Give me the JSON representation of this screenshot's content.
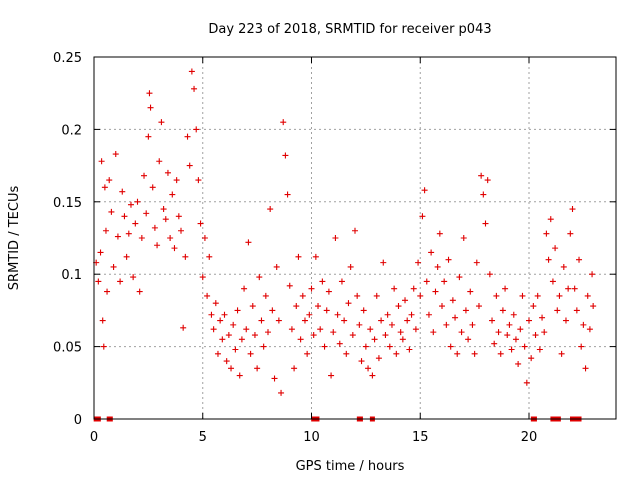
{
  "chart_data": {
    "type": "scatter",
    "title": "Day 223 of 2018, SRMTID for receiver p043",
    "xlabel": "GPS time / hours",
    "ylabel": "SRMTID / TECUs",
    "xlim": [
      0,
      24
    ],
    "ylim": [
      0,
      0.25
    ],
    "xticks": [
      0,
      5,
      10,
      15,
      20
    ],
    "xtick_labels": [
      "0",
      "5",
      "10",
      "15",
      "20"
    ],
    "yticks": [
      0,
      0.05,
      0.1,
      0.15,
      0.2,
      0.25
    ],
    "ytick_labels": [
      "0",
      "0.05",
      "0.1",
      "0.15",
      "0.2",
      "0.25"
    ],
    "grid": true,
    "marker": "+",
    "color": "#e00000",
    "series": [
      {
        "name": "SRMTID",
        "points": [
          [
            0.1,
            0.108
          ],
          [
            0.2,
            0.095
          ],
          [
            0.3,
            0.115
          ],
          [
            0.35,
            0.178
          ],
          [
            0.4,
            0.068
          ],
          [
            0.45,
            0.05
          ],
          [
            0.5,
            0.16
          ],
          [
            0.55,
            0.13
          ],
          [
            0.6,
            0.088
          ],
          [
            0.7,
            0.165
          ],
          [
            0.8,
            0.143
          ],
          [
            0.9,
            0.105
          ],
          [
            1.0,
            0.183
          ],
          [
            1.1,
            0.126
          ],
          [
            1.2,
            0.095
          ],
          [
            1.3,
            0.157
          ],
          [
            1.4,
            0.14
          ],
          [
            1.5,
            0.112
          ],
          [
            1.6,
            0.128
          ],
          [
            1.7,
            0.148
          ],
          [
            1.8,
            0.098
          ],
          [
            1.9,
            0.135
          ],
          [
            2.0,
            0.15
          ],
          [
            2.1,
            0.088
          ],
          [
            2.2,
            0.125
          ],
          [
            2.3,
            0.168
          ],
          [
            2.4,
            0.142
          ],
          [
            2.5,
            0.195
          ],
          [
            2.55,
            0.225
          ],
          [
            2.6,
            0.215
          ],
          [
            2.7,
            0.16
          ],
          [
            2.8,
            0.132
          ],
          [
            2.9,
            0.12
          ],
          [
            3.0,
            0.178
          ],
          [
            3.1,
            0.205
          ],
          [
            3.2,
            0.145
          ],
          [
            3.3,
            0.138
          ],
          [
            3.4,
            0.17
          ],
          [
            3.5,
            0.125
          ],
          [
            3.6,
            0.155
          ],
          [
            3.7,
            0.118
          ],
          [
            3.8,
            0.165
          ],
          [
            3.9,
            0.14
          ],
          [
            4.0,
            0.13
          ],
          [
            4.1,
            0.063
          ],
          [
            4.2,
            0.112
          ],
          [
            4.3,
            0.195
          ],
          [
            4.4,
            0.175
          ],
          [
            4.5,
            0.24
          ],
          [
            4.6,
            0.228
          ],
          [
            4.7,
            0.2
          ],
          [
            4.8,
            0.165
          ],
          [
            4.9,
            0.135
          ],
          [
            5.0,
            0.098
          ],
          [
            5.1,
            0.125
          ],
          [
            5.2,
            0.085
          ],
          [
            5.3,
            0.112
          ],
          [
            5.4,
            0.072
          ],
          [
            5.5,
            0.062
          ],
          [
            5.6,
            0.08
          ],
          [
            5.7,
            0.045
          ],
          [
            5.8,
            0.068
          ],
          [
            5.9,
            0.055
          ],
          [
            6.0,
            0.072
          ],
          [
            6.1,
            0.04
          ],
          [
            6.2,
            0.058
          ],
          [
            6.3,
            0.035
          ],
          [
            6.4,
            0.065
          ],
          [
            6.5,
            0.048
          ],
          [
            6.6,
            0.075
          ],
          [
            6.7,
            0.03
          ],
          [
            6.8,
            0.055
          ],
          [
            6.9,
            0.09
          ],
          [
            7.0,
            0.062
          ],
          [
            7.1,
            0.122
          ],
          [
            7.2,
            0.045
          ],
          [
            7.3,
            0.078
          ],
          [
            7.4,
            0.058
          ],
          [
            7.5,
            0.035
          ],
          [
            7.6,
            0.098
          ],
          [
            7.7,
            0.068
          ],
          [
            7.8,
            0.05
          ],
          [
            7.9,
            0.085
          ],
          [
            8.0,
            0.06
          ],
          [
            8.1,
            0.145
          ],
          [
            8.2,
            0.075
          ],
          [
            8.3,
            0.028
          ],
          [
            8.4,
            0.105
          ],
          [
            8.5,
            0.068
          ],
          [
            8.6,
            0.018
          ],
          [
            8.7,
            0.205
          ],
          [
            8.8,
            0.182
          ],
          [
            8.9,
            0.155
          ],
          [
            9.0,
            0.092
          ],
          [
            9.1,
            0.062
          ],
          [
            9.2,
            0.035
          ],
          [
            9.3,
            0.078
          ],
          [
            9.4,
            0.112
          ],
          [
            9.5,
            0.055
          ],
          [
            9.6,
            0.085
          ],
          [
            9.7,
            0.068
          ],
          [
            9.8,
            0.045
          ],
          [
            9.9,
            0.072
          ],
          [
            10.0,
            0.09
          ],
          [
            10.1,
            0.058
          ],
          [
            10.2,
            0.112
          ],
          [
            10.3,
            0.078
          ],
          [
            10.4,
            0.062
          ],
          [
            10.5,
            0.095
          ],
          [
            10.6,
            0.05
          ],
          [
            10.7,
            0.075
          ],
          [
            10.8,
            0.088
          ],
          [
            10.9,
            0.03
          ],
          [
            11.0,
            0.06
          ],
          [
            11.1,
            0.125
          ],
          [
            11.2,
            0.072
          ],
          [
            11.3,
            0.052
          ],
          [
            11.4,
            0.095
          ],
          [
            11.5,
            0.068
          ],
          [
            11.6,
            0.045
          ],
          [
            11.7,
            0.08
          ],
          [
            11.8,
            0.105
          ],
          [
            11.9,
            0.058
          ],
          [
            12.0,
            0.13
          ],
          [
            12.1,
            0.085
          ],
          [
            12.2,
            0.065
          ],
          [
            12.3,
            0.04
          ],
          [
            12.4,
            0.075
          ],
          [
            12.5,
            0.05
          ],
          [
            12.6,
            0.035
          ],
          [
            12.7,
            0.062
          ],
          [
            12.8,
            0.03
          ],
          [
            12.9,
            0.055
          ],
          [
            13.0,
            0.085
          ],
          [
            13.1,
            0.042
          ],
          [
            13.2,
            0.068
          ],
          [
            13.3,
            0.108
          ],
          [
            13.4,
            0.058
          ],
          [
            13.5,
            0.072
          ],
          [
            13.6,
            0.05
          ],
          [
            13.7,
            0.065
          ],
          [
            13.8,
            0.09
          ],
          [
            13.9,
            0.045
          ],
          [
            14.0,
            0.078
          ],
          [
            14.1,
            0.06
          ],
          [
            14.2,
            0.055
          ],
          [
            14.3,
            0.082
          ],
          [
            14.4,
            0.068
          ],
          [
            14.5,
            0.048
          ],
          [
            14.6,
            0.072
          ],
          [
            14.7,
            0.09
          ],
          [
            14.8,
            0.062
          ],
          [
            14.9,
            0.108
          ],
          [
            15.0,
            0.085
          ],
          [
            15.1,
            0.14
          ],
          [
            15.2,
            0.158
          ],
          [
            15.3,
            0.095
          ],
          [
            15.4,
            0.072
          ],
          [
            15.5,
            0.115
          ],
          [
            15.6,
            0.06
          ],
          [
            15.7,
            0.088
          ],
          [
            15.8,
            0.105
          ],
          [
            15.9,
            0.128
          ],
          [
            16.0,
            0.078
          ],
          [
            16.1,
            0.095
          ],
          [
            16.2,
            0.065
          ],
          [
            16.3,
            0.11
          ],
          [
            16.4,
            0.05
          ],
          [
            16.5,
            0.082
          ],
          [
            16.6,
            0.07
          ],
          [
            16.7,
            0.045
          ],
          [
            16.8,
            0.098
          ],
          [
            16.9,
            0.06
          ],
          [
            17.0,
            0.125
          ],
          [
            17.1,
            0.075
          ],
          [
            17.2,
            0.055
          ],
          [
            17.3,
            0.088
          ],
          [
            17.4,
            0.065
          ],
          [
            17.5,
            0.045
          ],
          [
            17.6,
            0.108
          ],
          [
            17.7,
            0.078
          ],
          [
            17.8,
            0.168
          ],
          [
            17.9,
            0.155
          ],
          [
            18.0,
            0.135
          ],
          [
            18.1,
            0.165
          ],
          [
            18.2,
            0.1
          ],
          [
            18.3,
            0.068
          ],
          [
            18.4,
            0.052
          ],
          [
            18.5,
            0.085
          ],
          [
            18.6,
            0.06
          ],
          [
            18.7,
            0.045
          ],
          [
            18.8,
            0.075
          ],
          [
            18.9,
            0.09
          ],
          [
            19.0,
            0.058
          ],
          [
            19.1,
            0.065
          ],
          [
            19.2,
            0.048
          ],
          [
            19.3,
            0.072
          ],
          [
            19.4,
            0.055
          ],
          [
            19.5,
            0.038
          ],
          [
            19.6,
            0.062
          ],
          [
            19.7,
            0.085
          ],
          [
            19.8,
            0.05
          ],
          [
            19.9,
            0.025
          ],
          [
            20.0,
            0.068
          ],
          [
            20.1,
            0.042
          ],
          [
            20.2,
            0.078
          ],
          [
            20.3,
            0.058
          ],
          [
            20.4,
            0.085
          ],
          [
            20.5,
            0.048
          ],
          [
            20.6,
            0.07
          ],
          [
            20.7,
            0.06
          ],
          [
            20.8,
            0.128
          ],
          [
            20.9,
            0.11
          ],
          [
            21.0,
            0.138
          ],
          [
            21.1,
            0.095
          ],
          [
            21.2,
            0.118
          ],
          [
            21.3,
            0.075
          ],
          [
            21.4,
            0.085
          ],
          [
            21.5,
            0.045
          ],
          [
            21.6,
            0.105
          ],
          [
            21.7,
            0.068
          ],
          [
            21.8,
            0.09
          ],
          [
            21.9,
            0.128
          ],
          [
            22.0,
            0.145
          ],
          [
            22.1,
            0.09
          ],
          [
            22.2,
            0.075
          ],
          [
            22.3,
            0.11
          ],
          [
            22.4,
            0.05
          ],
          [
            22.5,
            0.065
          ],
          [
            22.6,
            0.035
          ],
          [
            22.7,
            0.085
          ],
          [
            22.8,
            0.062
          ],
          [
            22.9,
            0.1
          ],
          [
            22.95,
            0.078
          ],
          [
            0.1,
            0
          ],
          [
            0.15,
            0
          ],
          [
            0.2,
            0
          ],
          [
            0.7,
            0
          ],
          [
            0.75,
            0
          ],
          [
            10.1,
            0
          ],
          [
            10.2,
            0
          ],
          [
            10.25,
            0
          ],
          [
            12.2,
            0
          ],
          [
            12.25,
            0
          ],
          [
            12.8,
            0
          ],
          [
            20.2,
            0
          ],
          [
            20.25,
            0
          ],
          [
            21.1,
            0
          ],
          [
            21.2,
            0
          ],
          [
            21.3,
            0
          ],
          [
            21.35,
            0
          ],
          [
            22.0,
            0
          ],
          [
            22.1,
            0
          ],
          [
            22.2,
            0
          ],
          [
            22.3,
            0
          ]
        ]
      }
    ]
  }
}
